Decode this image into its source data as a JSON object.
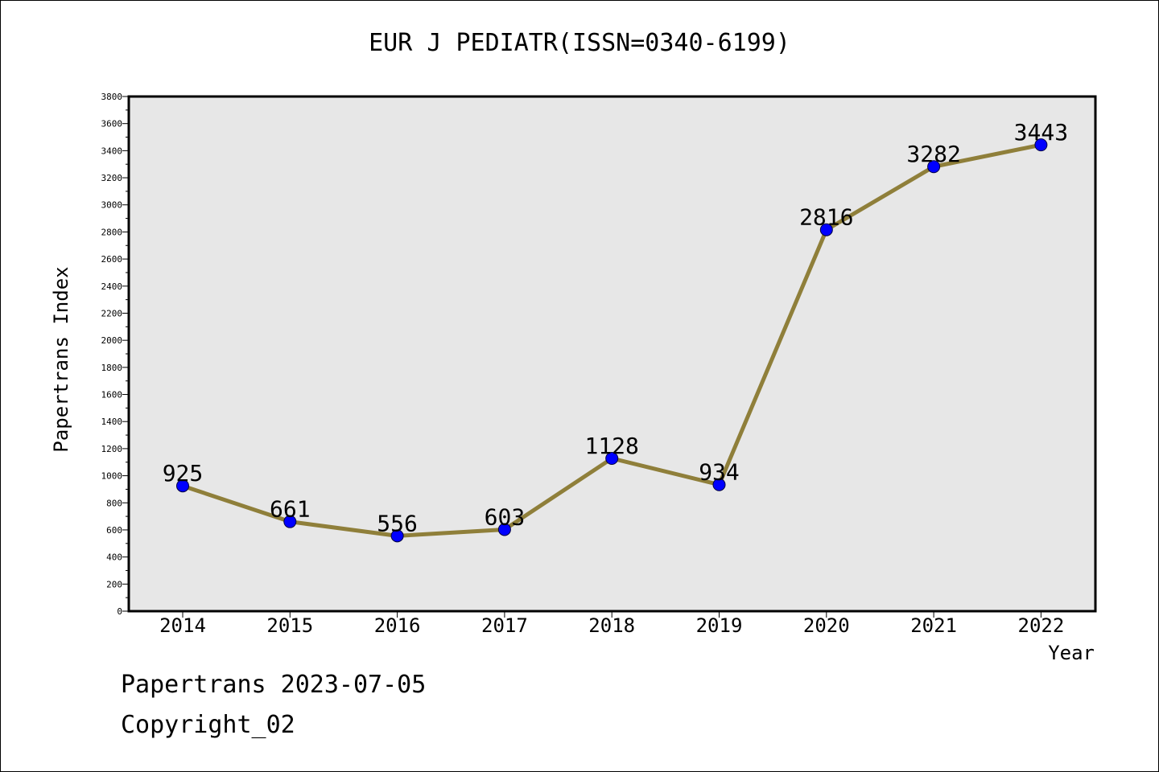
{
  "chart_data": {
    "type": "line",
    "title": "EUR J PEDIATR(ISSN=0340-6199)",
    "xlabel": "Year",
    "ylabel": "Papertrans Index",
    "x": [
      "2014",
      "2015",
      "2016",
      "2017",
      "2018",
      "2019",
      "2020",
      "2021",
      "2022"
    ],
    "series": [
      {
        "values": [
          925,
          661,
          556,
          603,
          1128,
          934,
          2816,
          3282,
          3443
        ]
      }
    ],
    "ylim": [
      0,
      3800
    ],
    "yticks": [
      0,
      200,
      400,
      600,
      800,
      1000,
      1200,
      1400,
      1600,
      1800,
      2000,
      2200,
      2400,
      2600,
      2800,
      3000,
      3200,
      3400,
      3600,
      3800
    ],
    "grid": false,
    "data_labels": true,
    "colors": {
      "line": "#8f7f3a",
      "marker": "#0000ff",
      "plot_background": "#e7e7e7"
    }
  },
  "footer": {
    "date_line": "Papertrans 2023-07-05",
    "copyright_line": "Copyright_02"
  }
}
